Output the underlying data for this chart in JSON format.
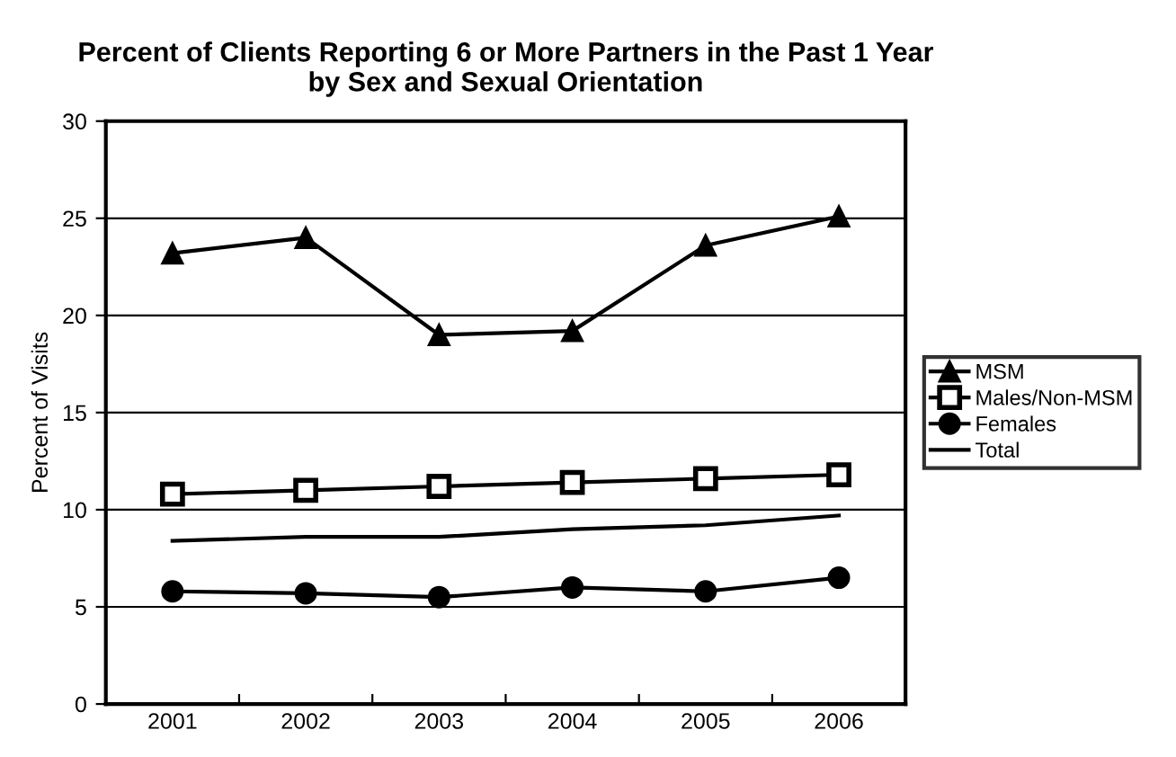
{
  "chart_data": {
    "type": "line",
    "title": "Percent of Clients Reporting 6 or More Partners in the Past 1 Year\nby Sex and Sexual Orientation",
    "ylabel": "Percent of Visits",
    "categories": [
      "2001",
      "2002",
      "2003",
      "2004",
      "2005",
      "2006"
    ],
    "series": [
      {
        "name": "MSM",
        "color": "#000000",
        "marker": "triangle",
        "values": [
          23.2,
          24.0,
          19.0,
          19.2,
          23.6,
          25.1
        ]
      },
      {
        "name": "Males/Non-MSM",
        "color": "#000000",
        "marker": "square",
        "values": [
          10.8,
          11.0,
          11.2,
          11.4,
          11.6,
          11.8
        ]
      },
      {
        "name": "Females",
        "color": "#000000",
        "marker": "circle",
        "values": [
          5.8,
          5.7,
          5.5,
          6.0,
          5.8,
          6.5
        ]
      },
      {
        "name": "Total",
        "color": "#000000",
        "marker": "none",
        "values": [
          8.4,
          8.6,
          8.6,
          9.0,
          9.2,
          9.7
        ]
      }
    ],
    "ylim": [
      0,
      30
    ],
    "yticks": [
      0,
      5,
      10,
      15,
      20,
      25,
      30
    ],
    "grid": "y",
    "legend": "right",
    "line_style": "solid"
  }
}
